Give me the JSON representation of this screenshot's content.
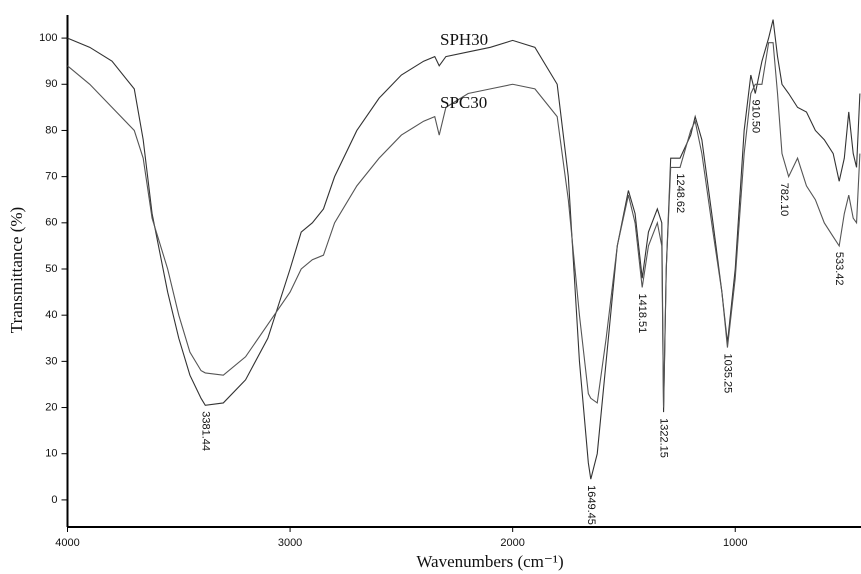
{
  "chart_data": {
    "type": "line",
    "xlabel": "Wavenumbers (cm⁻¹)",
    "ylabel": "Transmittance (%)",
    "xlim": [
      4000,
      435
    ],
    "ylim": [
      -5,
      105
    ],
    "xticks": [
      4000,
      3000,
      2000,
      1000
    ],
    "yticks": [
      0,
      10,
      20,
      30,
      40,
      50,
      60,
      70,
      80,
      90,
      100
    ],
    "grid": false,
    "x": [
      4000,
      3900,
      3800,
      3700,
      3660,
      3620,
      3550,
      3500,
      3450,
      3400,
      3381,
      3300,
      3200,
      3100,
      3000,
      2950,
      2900,
      2850,
      2800,
      2700,
      2600,
      2500,
      2400,
      2350,
      2330,
      2300,
      2200,
      2100,
      2000,
      1900,
      1800,
      1750,
      1700,
      1660,
      1649,
      1620,
      1580,
      1530,
      1480,
      1450,
      1418,
      1390,
      1350,
      1330,
      1322,
      1310,
      1290,
      1248,
      1200,
      1180,
      1150,
      1100,
      1060,
      1035,
      1000,
      960,
      930,
      910,
      880,
      850,
      830,
      810,
      790,
      760,
      720,
      680,
      640,
      600,
      560,
      533,
      510,
      490,
      470,
      455,
      440
    ],
    "series": [
      {
        "name": "SPH30",
        "color": "#333333",
        "values": [
          100,
          98,
          95,
          89,
          78,
          62,
          45,
          35,
          27,
          22,
          20.5,
          21,
          26,
          35,
          50,
          58,
          60,
          63,
          70,
          80,
          87,
          92,
          95,
          96,
          94,
          96,
          97,
          98,
          99.5,
          98,
          90,
          70,
          30,
          8,
          4.5,
          10,
          30,
          55,
          67,
          62,
          48,
          58,
          63,
          60,
          19,
          50,
          74,
          74,
          79,
          83,
          78,
          60,
          45,
          34,
          50,
          80,
          92,
          88,
          95,
          100,
          104,
          96,
          90,
          88,
          85,
          84,
          80,
          78,
          75,
          69,
          74,
          84,
          75,
          72,
          88
        ]
      },
      {
        "name": "SPC30",
        "color": "#555555",
        "values": [
          94,
          90,
          85,
          80,
          74,
          61,
          50,
          40,
          32,
          28,
          27.5,
          27,
          31,
          38,
          45,
          50,
          52,
          53,
          60,
          68,
          74,
          79,
          82,
          83,
          79,
          85,
          88,
          89,
          90,
          89,
          83,
          65,
          40,
          23,
          22,
          21,
          35,
          55,
          66,
          60,
          46,
          55,
          60,
          55,
          20,
          50,
          72,
          72,
          80,
          82,
          75,
          58,
          45,
          33,
          48,
          75,
          88,
          90,
          90,
          99,
          99,
          88,
          75,
          70,
          74,
          68,
          65,
          60,
          57,
          55,
          62,
          66,
          61,
          60,
          75
        ]
      }
    ],
    "annotations": [
      {
        "label": "3381.44",
        "x": 3381.44,
        "y": 20.5
      },
      {
        "label": "1649.45",
        "x": 1649.45,
        "y": 4.5
      },
      {
        "label": "1418.51",
        "x": 1418.51,
        "y": 46
      },
      {
        "label": "1322.15",
        "x": 1322.15,
        "y": 19
      },
      {
        "label": "1248.62",
        "x": 1248.62,
        "y": 72
      },
      {
        "label": "1035.25",
        "x": 1035.25,
        "y": 33
      },
      {
        "label": "910.50",
        "x": 910.5,
        "y": 88
      },
      {
        "label": "782.10",
        "x": 782.1,
        "y": 70
      },
      {
        "label": "533.42",
        "x": 533.42,
        "y": 55
      }
    ]
  }
}
